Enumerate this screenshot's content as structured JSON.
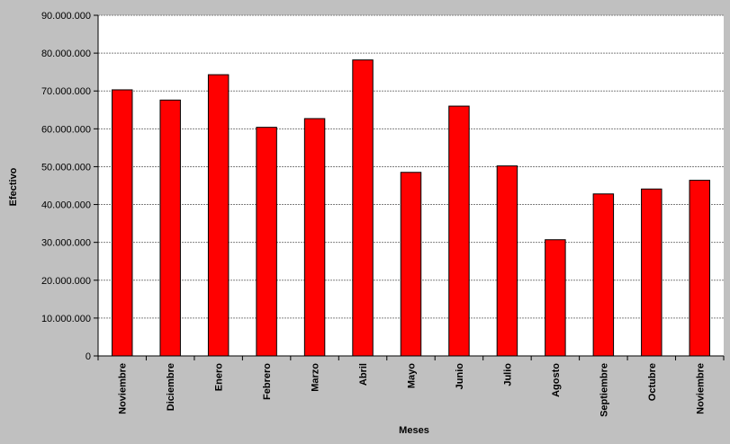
{
  "chart_data": {
    "type": "bar",
    "title": "",
    "xlabel": "Meses",
    "ylabel": "Efectivo",
    "categories": [
      "Noviembre",
      "Diciembre",
      "Enero",
      "Febrero",
      "Marzo",
      "Abril",
      "Mayo",
      "Junio",
      "Julio",
      "Agosto",
      "Septiembre",
      "Octubre",
      "Noviembre"
    ],
    "values": [
      70300000,
      67600000,
      74300000,
      60400000,
      62700000,
      78200000,
      48500000,
      66000000,
      50200000,
      30700000,
      42800000,
      44100000,
      46400000
    ],
    "ylim": [
      0,
      90000000
    ],
    "yticks": [
      0,
      10000000,
      20000000,
      30000000,
      40000000,
      50000000,
      60000000,
      70000000,
      80000000,
      90000000
    ],
    "ytick_labels": [
      "0",
      "10.000.000",
      "20.000.000",
      "30.000.000",
      "40.000.000",
      "50.000.000",
      "60.000.000",
      "70.000.000",
      "80.000.000",
      "90.000.000"
    ],
    "grid": true,
    "legend": "none",
    "bar_color": "#ff0000",
    "background_color": "#c0c0c0",
    "plot_background": "#ffffff"
  }
}
